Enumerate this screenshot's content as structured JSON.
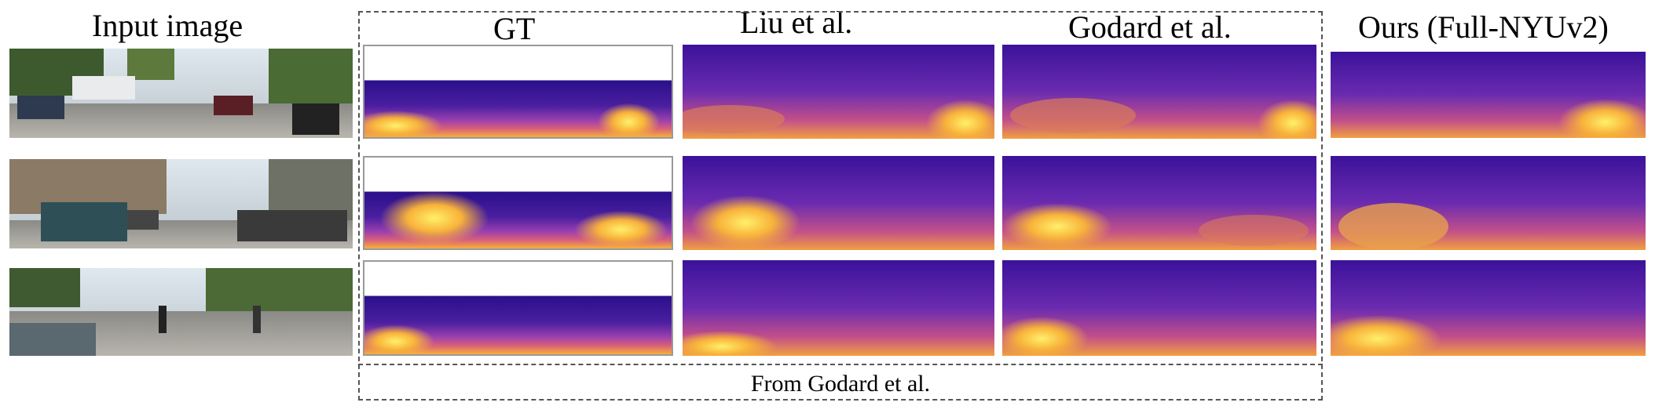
{
  "headers": {
    "input": "Input image",
    "gt": "GT",
    "liu": "Liu et al.",
    "godard": "Godard et al.",
    "ours": "Ours (Full-NYUv2)"
  },
  "caption": "From Godard et al.",
  "colors": {
    "depth_far": "#2a0f8a",
    "depth_mid": "#8e3fb0",
    "depth_near": "#f7c33c",
    "dash": "#555555"
  }
}
